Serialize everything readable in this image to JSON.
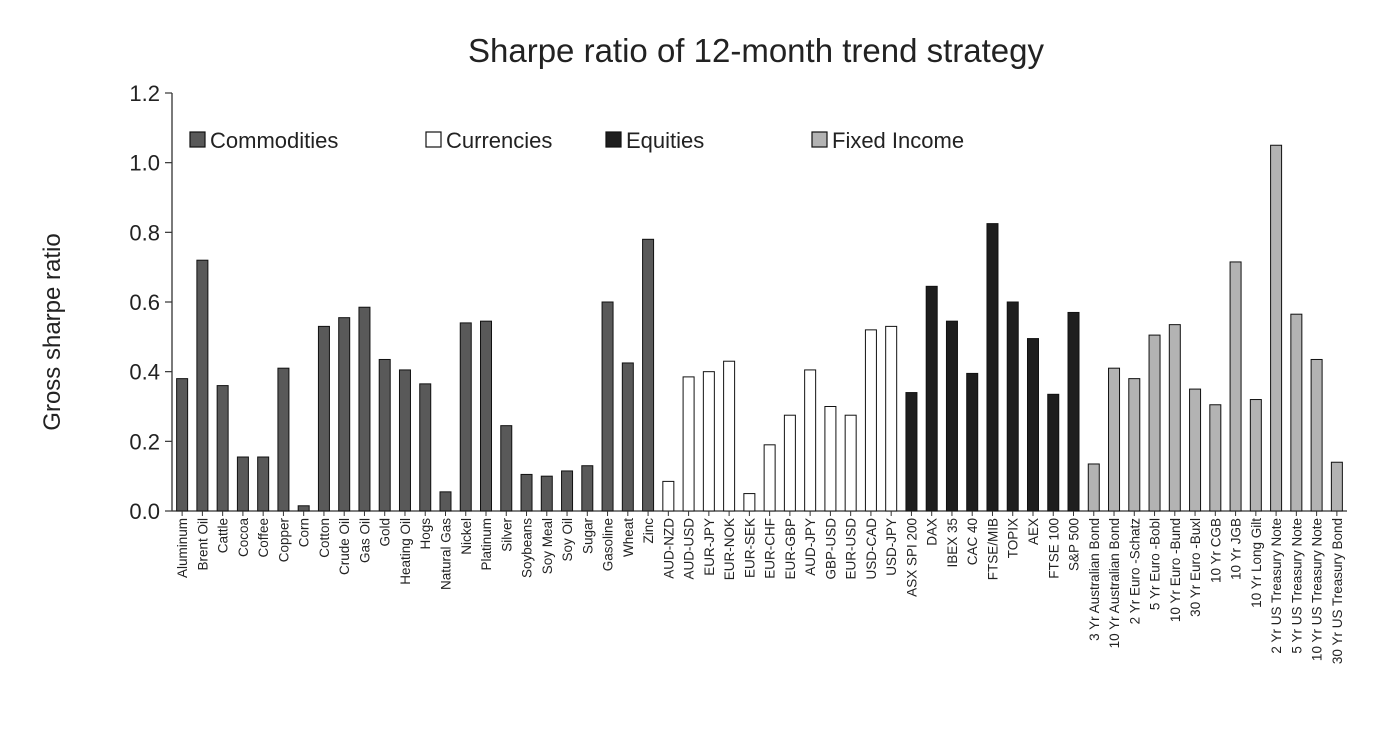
{
  "chart_data": {
    "type": "bar",
    "title": "Sharpe ratio of 12-month trend strategy",
    "xlabel": "",
    "ylabel": "Gross sharpe ratio",
    "ylim": [
      0.0,
      1.2
    ],
    "yticks": [
      "0.0",
      "0.2",
      "0.4",
      "0.6",
      "0.8",
      "1.0",
      "1.2"
    ],
    "grid": false,
    "legend_position": "top",
    "groups": [
      {
        "name": "Commodities",
        "color": "#595959"
      },
      {
        "name": "Currencies",
        "color": "#ffffff"
      },
      {
        "name": "Equities",
        "color": "#1e1e1e"
      },
      {
        "name": "Fixed Income",
        "color": "#b3b3b3"
      }
    ],
    "categories": [
      "Aluminum",
      "Brent Oil",
      "Cattle",
      "Cocoa",
      "Coffee",
      "Copper",
      "Corn",
      "Cotton",
      "Crude Oil",
      "Gas Oil",
      "Gold",
      "Heating Oil",
      "Hogs",
      "Natural Gas",
      "Nickel",
      "Platinum",
      "Silver",
      "Soybeans",
      "Soy Meal",
      "Soy Oil",
      "Sugar",
      "Gasoline",
      "Wheat",
      "Zinc",
      "AUD-NZD",
      "AUD-USD",
      "EUR-JPY",
      "EUR-NOK",
      "EUR-SEK",
      "EUR-CHF",
      "EUR-GBP",
      "AUD-JPY",
      "GBP-USD",
      "EUR-USD",
      "USD-CAD",
      "USD-JPY",
      "ASX SPI 200",
      "DAX",
      "IBEX 35",
      "CAC 40",
      "FTSE/MIB",
      "TOPIX",
      "AEX",
      "FTSE 100",
      "S&P 500",
      "3 Yr Australian Bond",
      "10 Yr Australian Bond",
      "2 Yr Euro -Schatz",
      "5 Yr Euro -Bobl",
      "10 Yr Euro -Bund",
      "30 Yr Euro -Buxl",
      "10 Yr CGB",
      "10 Yr JGB",
      "10 Yr Long Gilt",
      "2 Yr US Treasury Note",
      "5 Yr US Treasury Note",
      "10 Yr US Treasury Note",
      "30 Yr US Treasury Bond"
    ],
    "category_group": [
      0,
      0,
      0,
      0,
      0,
      0,
      0,
      0,
      0,
      0,
      0,
      0,
      0,
      0,
      0,
      0,
      0,
      0,
      0,
      0,
      0,
      0,
      0,
      0,
      1,
      1,
      1,
      1,
      1,
      1,
      1,
      1,
      1,
      1,
      1,
      1,
      2,
      2,
      2,
      2,
      2,
      2,
      2,
      2,
      2,
      3,
      3,
      3,
      3,
      3,
      3,
      3,
      3,
      3,
      3,
      3,
      3,
      3
    ],
    "values": [
      0.38,
      0.72,
      0.36,
      0.155,
      0.155,
      0.41,
      0.015,
      0.53,
      0.555,
      0.585,
      0.435,
      0.405,
      0.365,
      0.055,
      0.54,
      0.545,
      0.245,
      0.105,
      0.1,
      0.115,
      0.13,
      0.6,
      0.425,
      0.78,
      0.085,
      0.385,
      0.4,
      0.43,
      0.05,
      0.19,
      0.275,
      0.405,
      0.3,
      0.275,
      0.52,
      0.53,
      0.34,
      0.645,
      0.545,
      0.395,
      0.825,
      0.6,
      0.495,
      0.335,
      0.57,
      0.135,
      0.41,
      0.38,
      0.505,
      0.535,
      0.35,
      0.305,
      0.715,
      0.32,
      1.05,
      0.565,
      0.435,
      0.14
    ]
  }
}
